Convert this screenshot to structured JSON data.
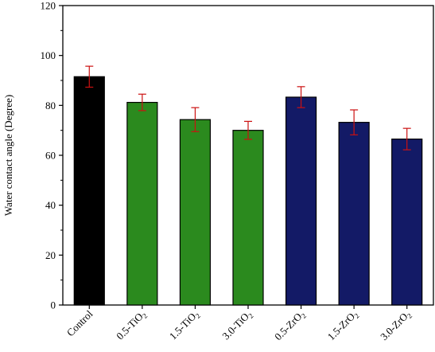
{
  "chart_data": {
    "type": "bar",
    "ylabel": "Water contact angle (Degree)",
    "xlabel": "",
    "ylim": [
      0,
      120
    ],
    "yticks": [
      0,
      20,
      40,
      60,
      80,
      100,
      120
    ],
    "categories": [
      {
        "base": "Control",
        "sub": ""
      },
      {
        "base": "0.5-TiO",
        "sub": "2"
      },
      {
        "base": "1.5-TiO",
        "sub": "2"
      },
      {
        "base": "3.0-TiO",
        "sub": "2"
      },
      {
        "base": "0.5-ZrO",
        "sub": "2"
      },
      {
        "base": "1.5-ZrO",
        "sub": "2"
      },
      {
        "base": "3.0-ZrO",
        "sub": "2"
      }
    ],
    "values": [
      91.5,
      81.2,
      74.3,
      70.0,
      83.3,
      73.2,
      66.5
    ],
    "errors": [
      4.2,
      3.3,
      4.8,
      3.6,
      4.2,
      5.0,
      4.3
    ],
    "bar_colors": [
      "#000000",
      "#2b8a1e",
      "#2b8a1e",
      "#2b8a1e",
      "#131a66",
      "#131a66",
      "#131a66"
    ],
    "error_color": "#cc1111",
    "grid": false
  }
}
